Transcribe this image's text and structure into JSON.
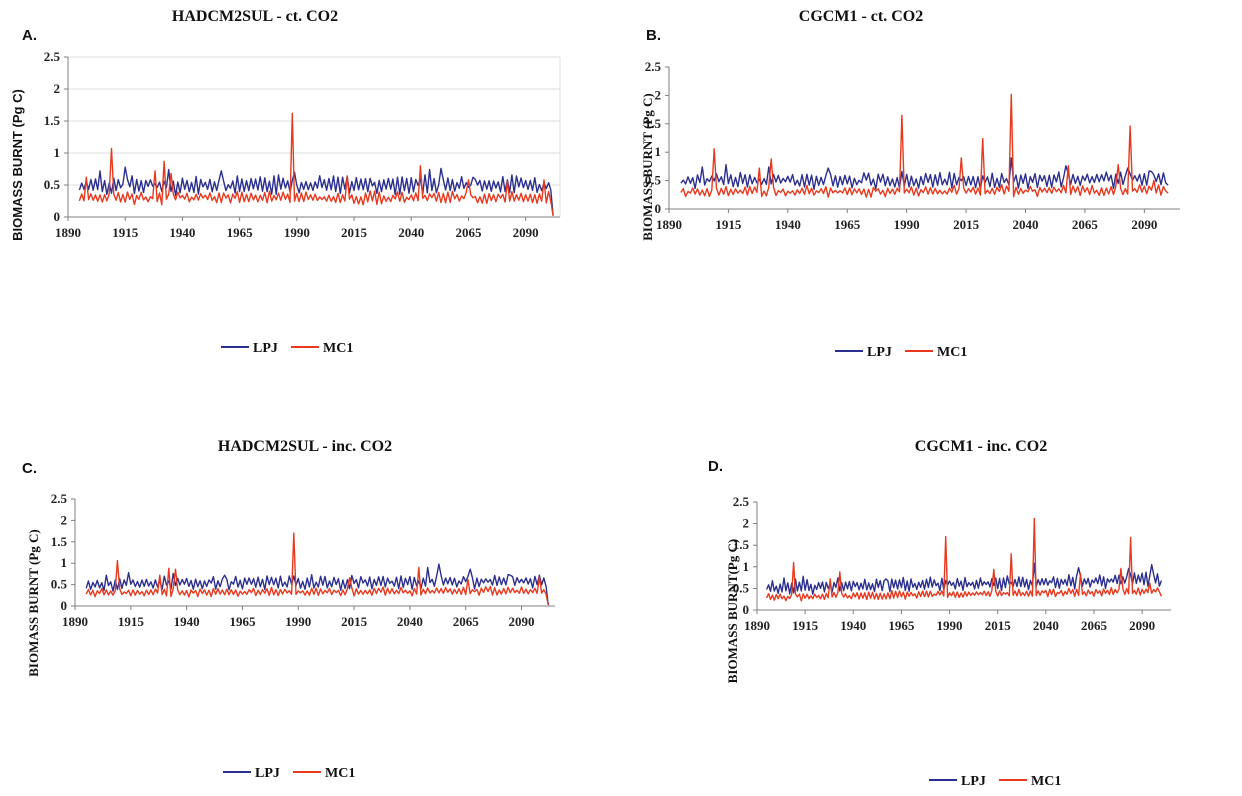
{
  "colors": {
    "lpj": "#2b2f8f",
    "mc1": "#e8391e"
  },
  "chart_data": [
    {
      "type": "line",
      "panel": "A.",
      "title": "HADCM2SUL - ct. CO2",
      "xlabel": "",
      "ylabel": "BIOMASS BURNT (Pg C)",
      "xlim": [
        1890,
        2105
      ],
      "ylim": [
        0,
        2.5
      ],
      "x_ticks": [
        1890,
        1915,
        1940,
        1965,
        1990,
        2015,
        2040,
        2065,
        2090
      ],
      "y_ticks": [
        0,
        0.5,
        1,
        1.5,
        2,
        2.5
      ],
      "grid": true,
      "legend": "bottom",
      "series": [
        {
          "name": "LPJ",
          "color": "#2b2f8f",
          "base": 0.5,
          "amp": 0.09,
          "trend": 0.0,
          "seed": 11,
          "end": 2102,
          "endv": 0.02,
          "peaks": [
            [
              1904,
              0.72
            ],
            [
              1915,
              0.78
            ],
            [
              1934,
              0.74
            ],
            [
              1957,
              0.72
            ],
            [
              1989,
              0.7
            ],
            [
              2048,
              0.74
            ],
            [
              2053,
              0.76
            ],
            [
              2067,
              0.62
            ]
          ]
        },
        {
          "name": "MC1",
          "color": "#e8391e",
          "base": 0.3,
          "amp": 0.06,
          "trend": 0.0,
          "seed": 23,
          "end": 2102,
          "endv": 0.02,
          "peaks": [
            [
              1898,
              0.62
            ],
            [
              1909,
              1.07
            ],
            [
              1928,
              0.72
            ],
            [
              1932,
              0.87
            ],
            [
              1935,
              0.68
            ],
            [
              1988,
              1.62
            ],
            [
              2012,
              0.64
            ],
            [
              2044,
              0.8
            ],
            [
              2065,
              0.58
            ],
            [
              2082,
              0.56
            ],
            [
              2098,
              0.58
            ]
          ]
        }
      ]
    },
    {
      "type": "line",
      "panel": "B.",
      "title": "CGCM1 - ct. CO2",
      "xlabel": "",
      "ylabel": "BIOMASS BURNT (Pg C)",
      "xlim": [
        1890,
        2105
      ],
      "ylim": [
        0,
        2.5
      ],
      "x_ticks": [
        1890,
        1915,
        1940,
        1965,
        1990,
        2015,
        2040,
        2065,
        2090
      ],
      "y_ticks": [
        0,
        0.5,
        1,
        1.5,
        2,
        2.5
      ],
      "grid": false,
      "legend": "bottom",
      "series": [
        {
          "name": "LPJ",
          "color": "#2b2f8f",
          "base": 0.5,
          "amp": 0.09,
          "trend": 0.02,
          "seed": 37,
          "end": 2100,
          "endv": 0.42,
          "peaks": [
            [
              1904,
              0.74
            ],
            [
              1914,
              0.78
            ],
            [
              1932,
              0.74
            ],
            [
              1957,
              0.72
            ],
            [
              1988,
              0.66
            ],
            [
              2034,
              0.9
            ],
            [
              2057,
              0.76
            ],
            [
              2083,
              0.72
            ],
            [
              2093,
              0.66
            ]
          ]
        },
        {
          "name": "MC1",
          "color": "#e8391e",
          "base": 0.3,
          "amp": 0.06,
          "trend": 0.03,
          "seed": 41,
          "end": 2100,
          "endv": 0.28,
          "peaks": [
            [
              1909,
              1.06
            ],
            [
              1928,
              0.72
            ],
            [
              1933,
              0.88
            ],
            [
              1988,
              1.65
            ],
            [
              2013,
              0.9
            ],
            [
              2022,
              1.24
            ],
            [
              2034,
              2.02
            ],
            [
              2058,
              0.76
            ],
            [
              2079,
              0.78
            ],
            [
              2084,
              1.46
            ],
            [
              2094,
              0.5
            ]
          ]
        }
      ]
    },
    {
      "type": "line",
      "panel": "C.",
      "title": "HADCM2SUL - inc. CO2",
      "xlabel": "",
      "ylabel": "BIOMASS BURNT (Pg C)",
      "xlim": [
        1890,
        2105
      ],
      "ylim": [
        0,
        2.5
      ],
      "x_ticks": [
        1890,
        1915,
        1940,
        1965,
        1990,
        2015,
        2040,
        2065,
        2090
      ],
      "y_ticks": [
        0,
        0.5,
        1,
        1.5,
        2,
        2.5
      ],
      "grid": false,
      "legend": "bottom",
      "series": [
        {
          "name": "LPJ",
          "color": "#2b2f8f",
          "base": 0.52,
          "amp": 0.1,
          "trend": 0.06,
          "seed": 53,
          "end": 2102,
          "endv": 0.02,
          "peaks": [
            [
              1904,
              0.72
            ],
            [
              1914,
              0.78
            ],
            [
              1934,
              0.76
            ],
            [
              1957,
              0.72
            ],
            [
              1988,
              0.7
            ],
            [
              2048,
              0.9
            ],
            [
              2053,
              0.98
            ],
            [
              2067,
              0.86
            ],
            [
              2085,
              0.72
            ],
            [
              2098,
              0.72
            ]
          ]
        },
        {
          "name": "MC1",
          "color": "#e8391e",
          "base": 0.3,
          "amp": 0.06,
          "trend": 0.06,
          "seed": 61,
          "end": 2102,
          "endv": 0.02,
          "peaks": [
            [
              1909,
              1.06
            ],
            [
              1928,
              0.72
            ],
            [
              1932,
              0.88
            ],
            [
              1935,
              0.86
            ],
            [
              1988,
              1.7
            ],
            [
              2013,
              0.66
            ],
            [
              2044,
              0.9
            ],
            [
              2066,
              0.62
            ],
            [
              2098,
              0.68
            ]
          ]
        }
      ]
    },
    {
      "type": "line",
      "panel": "D.",
      "title": "CGCM1 - inc. CO2",
      "xlabel": "",
      "ylabel": "BIOMASS BURNT(Pg C)",
      "xlim": [
        1890,
        2105
      ],
      "ylim": [
        0,
        2.5
      ],
      "x_ticks": [
        1890,
        1915,
        1940,
        1965,
        1990,
        2015,
        2040,
        2065,
        2090
      ],
      "y_ticks": [
        0,
        0.5,
        1,
        1.5,
        2,
        2.5
      ],
      "grid": false,
      "legend": "bottom",
      "series": [
        {
          "name": "LPJ",
          "color": "#2b2f8f",
          "base": 0.52,
          "amp": 0.1,
          "trend": 0.18,
          "seed": 71,
          "end": 2100,
          "endv": 0.68,
          "peaks": [
            [
              1904,
              0.74
            ],
            [
              1914,
              0.78
            ],
            [
              1932,
              0.74
            ],
            [
              1957,
              0.72
            ],
            [
              1988,
              0.68
            ],
            [
              2034,
              1.08
            ],
            [
              2057,
              0.98
            ],
            [
              2083,
              0.96
            ],
            [
              2095,
              1.05
            ]
          ]
        },
        {
          "name": "MC1",
          "color": "#e8391e",
          "base": 0.3,
          "amp": 0.06,
          "trend": 0.14,
          "seed": 83,
          "end": 2100,
          "endv": 0.32,
          "peaks": [
            [
              1909,
              1.1
            ],
            [
              1928,
              0.72
            ],
            [
              1933,
              0.88
            ],
            [
              1988,
              1.7
            ],
            [
              2013,
              0.94
            ],
            [
              2022,
              1.3
            ],
            [
              2034,
              2.12
            ],
            [
              2058,
              0.84
            ],
            [
              2079,
              0.96
            ],
            [
              2084,
              1.68
            ],
            [
              2094,
              0.62
            ]
          ]
        }
      ]
    }
  ]
}
